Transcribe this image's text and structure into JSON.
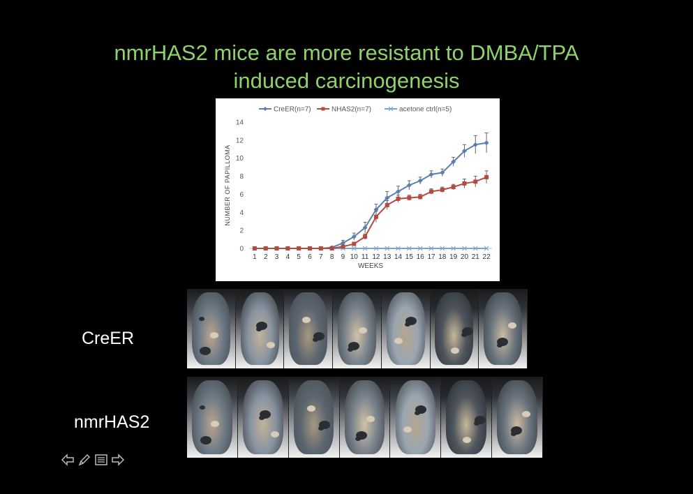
{
  "slide": {
    "title_line1": "nmrHAS2 mice are more resistant to DMBA/TPA",
    "title_line2": "induced carcinogenesis",
    "title_color": "#8fd26a"
  },
  "rows": {
    "creer_label": "CreER",
    "nmrhas2_label": "nmrHAS2"
  },
  "nav": {
    "icons": [
      "arrow-left-icon",
      "pencil-icon",
      "menu-icon",
      "arrow-right-icon"
    ]
  },
  "chart_data": {
    "type": "line",
    "title": "",
    "xlabel": "WEEKS",
    "ylabel": "NUMBER OF PAPILLOMA",
    "ylim": [
      0,
      14
    ],
    "yticks": [
      0,
      2,
      4,
      6,
      8,
      10,
      12,
      14
    ],
    "x": [
      1,
      2,
      3,
      4,
      5,
      6,
      7,
      8,
      9,
      10,
      11,
      12,
      13,
      14,
      15,
      16,
      17,
      18,
      19,
      20,
      21,
      22
    ],
    "legend_position": "top",
    "series": [
      {
        "name": "CreER(n=7)",
        "color": "#5a7fae",
        "marker": "diamond",
        "values": [
          0,
          0,
          0,
          0,
          0,
          0,
          0,
          0.1,
          0.6,
          1.3,
          2.3,
          4.3,
          5.6,
          6.3,
          7.0,
          7.5,
          8.2,
          8.4,
          9.6,
          10.8,
          11.5,
          11.7
        ],
        "errors": [
          0,
          0,
          0,
          0,
          0,
          0,
          0,
          0.1,
          0.3,
          0.4,
          0.6,
          0.6,
          0.7,
          0.6,
          0.5,
          0.4,
          0.4,
          0.4,
          0.5,
          0.7,
          1.0,
          1.1
        ]
      },
      {
        "name": "NHAS2(n=7)",
        "color": "#b5483f",
        "marker": "square",
        "values": [
          0,
          0,
          0,
          0,
          0,
          0,
          0,
          0,
          0.2,
          0.5,
          1.3,
          3.5,
          4.8,
          5.5,
          5.6,
          5.7,
          6.3,
          6.5,
          6.8,
          7.2,
          7.4,
          7.9
        ],
        "errors": [
          0,
          0,
          0,
          0,
          0,
          0,
          0,
          0,
          0.1,
          0.2,
          0.3,
          0.6,
          0.5,
          0.4,
          0.3,
          0.3,
          0.3,
          0.3,
          0.3,
          0.5,
          0.6,
          0.7
        ]
      },
      {
        "name": "acetone ctrl(n=5)",
        "color": "#7aa3d2",
        "marker": "x",
        "values": [
          0,
          0,
          0,
          0,
          0,
          0,
          0,
          0,
          0,
          0,
          0,
          0,
          0,
          0,
          0,
          0,
          0,
          0,
          0,
          0,
          0,
          0
        ],
        "errors": [
          0,
          0,
          0,
          0,
          0,
          0,
          0,
          0,
          0,
          0,
          0,
          0,
          0,
          0,
          0,
          0,
          0,
          0,
          0,
          0,
          0,
          0
        ]
      }
    ]
  }
}
